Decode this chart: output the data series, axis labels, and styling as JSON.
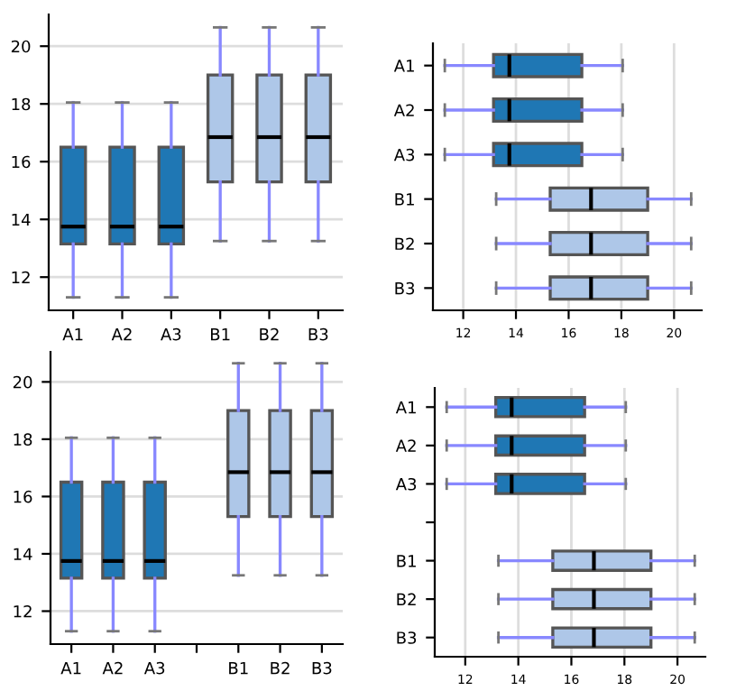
{
  "chart_data": [
    {
      "type": "box",
      "categories": [
        "A1",
        "A2",
        "A3",
        "B1",
        "B2",
        "B3"
      ],
      "ylim": [
        10.85,
        21.1
      ],
      "yticks": [
        12,
        14,
        16,
        18,
        20
      ],
      "grid": "y",
      "colors": [
        "#1f77b4",
        "#1f77b4",
        "#1f77b4",
        "#aec7e8",
        "#aec7e8",
        "#aec7e8"
      ],
      "boxes": [
        {
          "low": 11.3,
          "q1": 13.15,
          "median": 13.75,
          "q3": 16.5,
          "high": 18.05
        },
        {
          "low": 11.3,
          "q1": 13.15,
          "median": 13.75,
          "q3": 16.5,
          "high": 18.05
        },
        {
          "low": 11.3,
          "q1": 13.15,
          "median": 13.75,
          "q3": 16.5,
          "high": 18.05
        },
        {
          "low": 13.25,
          "q1": 15.3,
          "median": 16.85,
          "q3": 19.0,
          "high": 20.65
        },
        {
          "low": 13.25,
          "q1": 15.3,
          "median": 16.85,
          "q3": 19.0,
          "high": 20.65
        },
        {
          "low": 13.25,
          "q1": 15.3,
          "median": 16.85,
          "q3": 19.0,
          "high": 20.65
        }
      ]
    },
    {
      "type": "box",
      "orientation": "horizontal",
      "categories": [
        "A1",
        "A2",
        "A3",
        "B1",
        "B2",
        "B3"
      ],
      "xlim": [
        10.85,
        21.05
      ],
      "xticks": [
        12,
        14,
        16,
        18,
        20
      ],
      "grid": "x",
      "colors": [
        "#1f77b4",
        "#1f77b4",
        "#1f77b4",
        "#aec7e8",
        "#aec7e8",
        "#aec7e8"
      ],
      "boxes": [
        {
          "low": 11.3,
          "q1": 13.15,
          "median": 13.75,
          "q3": 16.5,
          "high": 18.05
        },
        {
          "low": 11.3,
          "q1": 13.15,
          "median": 13.75,
          "q3": 16.5,
          "high": 18.05
        },
        {
          "low": 11.3,
          "q1": 13.15,
          "median": 13.75,
          "q3": 16.5,
          "high": 18.05
        },
        {
          "low": 13.25,
          "q1": 15.3,
          "median": 16.85,
          "q3": 19.0,
          "high": 20.65
        },
        {
          "low": 13.25,
          "q1": 15.3,
          "median": 16.85,
          "q3": 19.0,
          "high": 20.65
        },
        {
          "low": 13.25,
          "q1": 15.3,
          "median": 16.85,
          "q3": 19.0,
          "high": 20.65
        }
      ]
    },
    {
      "type": "box",
      "categories": [
        "A1",
        "A2",
        "A3",
        null,
        "B1",
        "B2",
        "B3"
      ],
      "ylim": [
        10.85,
        21.05
      ],
      "yticks": [
        12,
        14,
        16,
        18,
        20
      ],
      "grid": "y",
      "colors": [
        "#1f77b4",
        "#1f77b4",
        "#1f77b4",
        null,
        "#aec7e8",
        "#aec7e8",
        "#aec7e8"
      ],
      "boxes": [
        {
          "low": 11.3,
          "q1": 13.15,
          "median": 13.75,
          "q3": 16.5,
          "high": 18.05
        },
        {
          "low": 11.3,
          "q1": 13.15,
          "median": 13.75,
          "q3": 16.5,
          "high": 18.05
        },
        {
          "low": 11.3,
          "q1": 13.15,
          "median": 13.75,
          "q3": 16.5,
          "high": 18.05
        },
        null,
        {
          "low": 13.25,
          "q1": 15.3,
          "median": 16.85,
          "q3": 19.0,
          "high": 20.65
        },
        {
          "low": 13.25,
          "q1": 15.3,
          "median": 16.85,
          "q3": 19.0,
          "high": 20.65
        },
        {
          "low": 13.25,
          "q1": 15.3,
          "median": 16.85,
          "q3": 19.0,
          "high": 20.65
        }
      ]
    },
    {
      "type": "box",
      "orientation": "horizontal",
      "categories": [
        "A1",
        "A2",
        "A3",
        null,
        "B1",
        "B2",
        "B3"
      ],
      "xlim": [
        10.85,
        21.05
      ],
      "xticks": [
        12,
        14,
        16,
        18,
        20
      ],
      "grid": "x",
      "colors": [
        "#1f77b4",
        "#1f77b4",
        "#1f77b4",
        null,
        "#aec7e8",
        "#aec7e8",
        "#aec7e8"
      ],
      "boxes": [
        {
          "low": 11.3,
          "q1": 13.15,
          "median": 13.75,
          "q3": 16.5,
          "high": 18.05
        },
        {
          "low": 11.3,
          "q1": 13.15,
          "median": 13.75,
          "q3": 16.5,
          "high": 18.05
        },
        {
          "low": 11.3,
          "q1": 13.15,
          "median": 13.75,
          "q3": 16.5,
          "high": 18.05
        },
        null,
        {
          "low": 13.25,
          "q1": 15.3,
          "median": 16.85,
          "q3": 19.0,
          "high": 20.65
        },
        {
          "low": 13.25,
          "q1": 15.3,
          "median": 16.85,
          "q3": 19.0,
          "high": 20.65
        },
        {
          "low": 13.25,
          "q1": 15.3,
          "median": 16.85,
          "q3": 19.0,
          "high": 20.65
        }
      ]
    }
  ]
}
